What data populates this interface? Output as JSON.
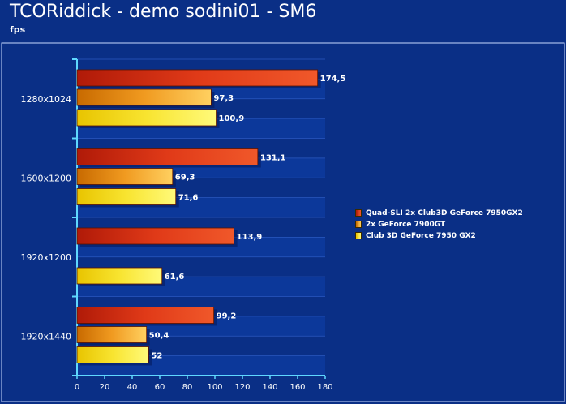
{
  "title": "TCORiddick - demo sodini01 - SM6",
  "subtitle": "fps",
  "chart_data": {
    "type": "bar",
    "orientation": "horizontal",
    "title": "TCORiddick - demo sodini01 - SM6",
    "subtitle": "fps",
    "categories": [
      "1280x1024",
      "1600x1200",
      "1920x1200",
      "1920x1440"
    ],
    "series": [
      {
        "name": "Quad-SLI 2x Club3D GeForce 7950GX2",
        "values": [
          174.5,
          131.1,
          113.9,
          99.2
        ],
        "labels": [
          "174,5",
          "131,1",
          "113,9",
          "99,2"
        ],
        "color": "#d92a10"
      },
      {
        "name": "2x GeForce 7900GT",
        "values": [
          97.3,
          69.3,
          null,
          50.4
        ],
        "labels": [
          "97,3",
          "69,3",
          "",
          "50,4"
        ],
        "color": "#ee8a10"
      },
      {
        "name": "Club 3D GeForce 7950 GX2",
        "values": [
          100.9,
          71.6,
          61.6,
          52
        ],
        "labels": [
          "100,9",
          "71,6",
          "61,6",
          "52"
        ],
        "color": "#f6da12"
      }
    ],
    "xlim": [
      0,
      180
    ],
    "xticks": [
      0,
      20,
      40,
      60,
      80,
      100,
      120,
      140,
      160,
      180
    ],
    "grid": true,
    "legend_position": "right"
  }
}
